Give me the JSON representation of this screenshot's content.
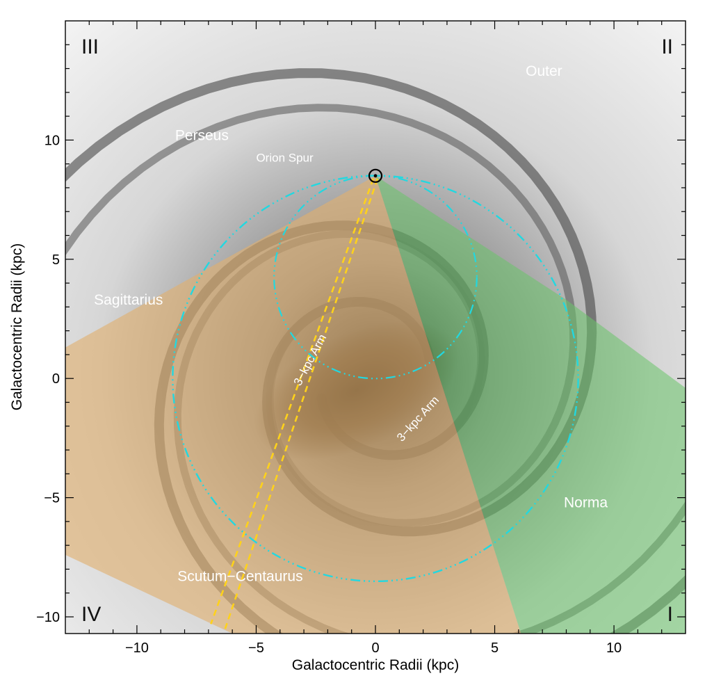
{
  "chart_data": {
    "type": "diagram",
    "xlabel": "Galactocentric Radii (kpc)",
    "ylabel": "Galactocentric Radii (kpc)",
    "xlim": [
      -13,
      13
    ],
    "ylim": [
      -10.7,
      15
    ],
    "x_ticks": [
      {
        "value": -10,
        "label": "−10"
      },
      {
        "value": -5,
        "label": "−5"
      },
      {
        "value": 0,
        "label": "0"
      },
      {
        "value": 5,
        "label": "5"
      },
      {
        "value": 10,
        "label": "10"
      }
    ],
    "y_ticks": [
      {
        "value": -10,
        "label": "−10"
      },
      {
        "value": -5,
        "label": "−5"
      },
      {
        "value": 0,
        "label": "0"
      },
      {
        "value": 5,
        "label": "5"
      },
      {
        "value": 10,
        "label": "10"
      }
    ],
    "quadrant_labels": [
      "III",
      "II",
      "IV",
      "I"
    ],
    "arm_labels": [
      {
        "text": "Outer",
        "x": 6.3,
        "y": 12.7
      },
      {
        "text": "Perseus",
        "x": -8.4,
        "y": 10.0
      },
      {
        "text": "Orion Spur",
        "x": -5.0,
        "y": 9.1
      },
      {
        "text": "Sagittarius",
        "x": -11.8,
        "y": 3.1
      },
      {
        "text": "Norma",
        "x": 7.9,
        "y": -5.4
      },
      {
        "text": "Scutum−Centaurus",
        "x": -8.3,
        "y": -8.5
      }
    ],
    "arm_rotated_labels": [
      {
        "text": "3−kpc Arm",
        "x": -2.6,
        "y": 0.7,
        "angle": -62
      },
      {
        "text": "3−kpc Arm",
        "x": 1.9,
        "y": -1.8,
        "angle": -48
      }
    ],
    "sun_position": {
      "x": 0,
      "y": 8.5
    },
    "circles": [
      {
        "name": "solar-circle",
        "center": [
          0,
          0
        ],
        "radius": 8.5,
        "color": "#22d8e0"
      },
      {
        "name": "tangent-circle",
        "center": [
          0,
          4.25
        ],
        "radius": 4.25,
        "color": "#22d8e0"
      }
    ],
    "regions": [
      {
        "name": "fourth-quadrant",
        "color": "#e0b070"
      },
      {
        "name": "first-quadrant",
        "color": "#6ac46a"
      }
    ],
    "dashed_line_color": "#ffd21a"
  }
}
